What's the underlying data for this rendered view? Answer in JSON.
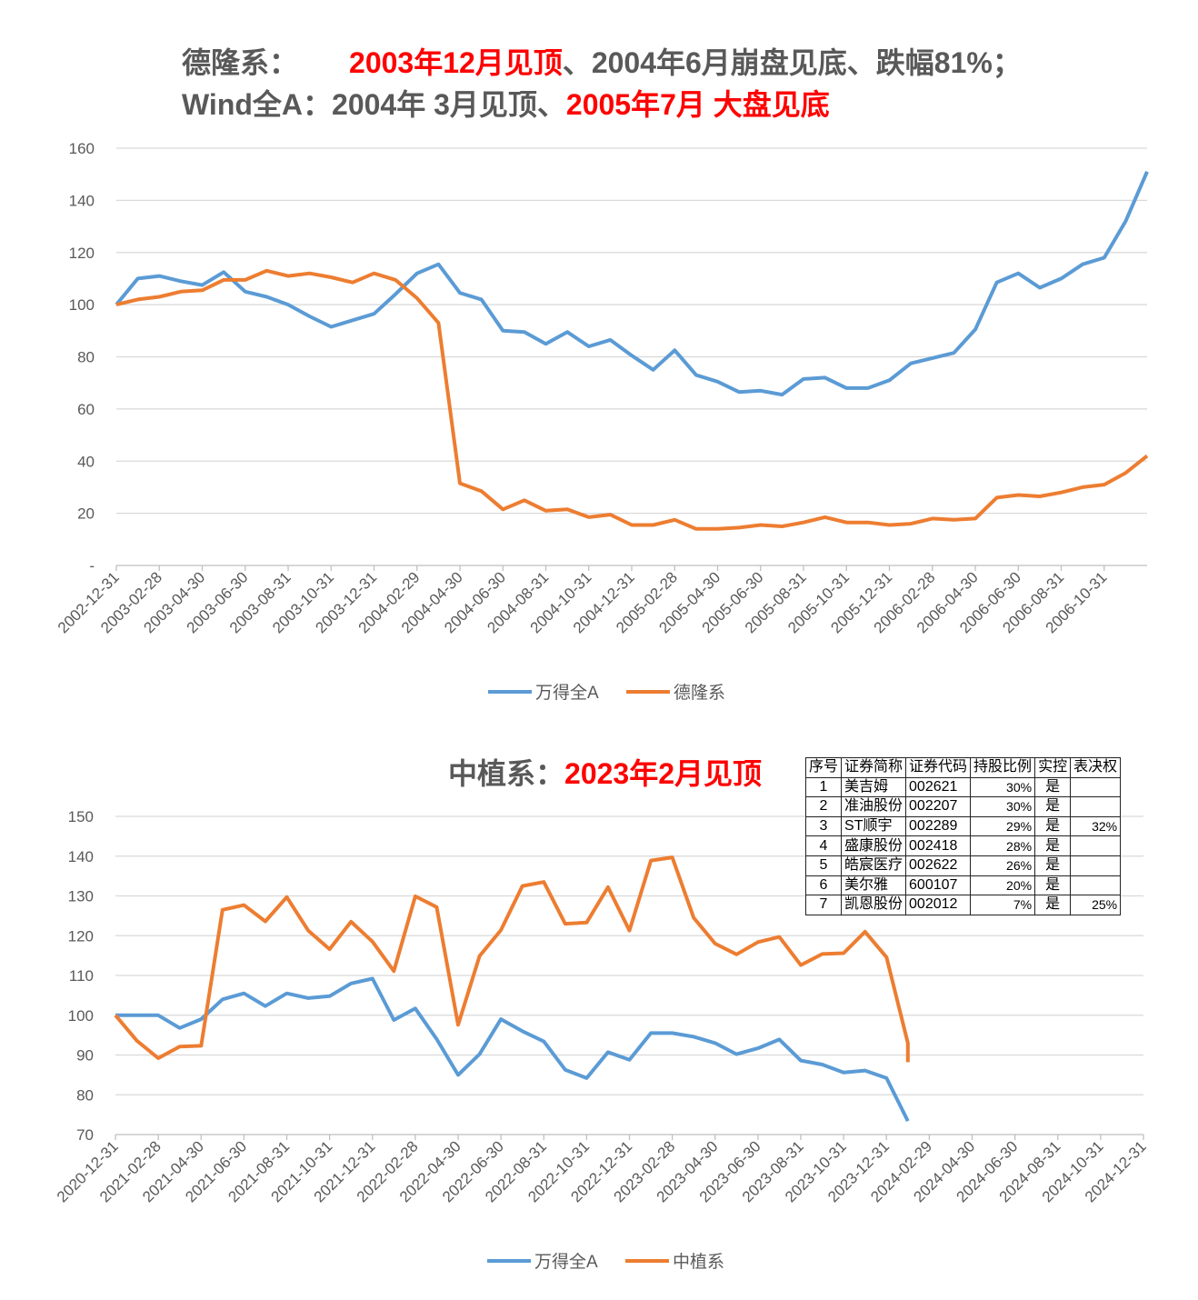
{
  "title1": {
    "line1_prefix": "德隆系：",
    "line1_red": "2003年12月见顶",
    "line1_rest": "、2004年6月崩盘见底、跌幅81%；",
    "line2_prefix": "Wind全A：2004年  3月见顶、",
    "line2_red": "2005年7月 大盘见底"
  },
  "title2": {
    "prefix": "中植系：",
    "red": "2023年2月见顶"
  },
  "colors": {
    "blue": "#5b9bd5",
    "orange": "#ed7d31",
    "red": "#ff0000",
    "grid": "#d9d9d9"
  },
  "chart_data": [
    {
      "type": "line",
      "title": "德隆系：2003年12月见顶、2004年6月崩盘见底、跌幅81%；Wind全A：2004年 3月见顶、2005年7月 大盘见底",
      "start": "2002-12-31",
      "frequency": "monthly",
      "x_tick_labels": [
        "2002-12-31",
        "2003-02-28",
        "2003-04-30",
        "2003-06-30",
        "2003-08-31",
        "2003-10-31",
        "2003-12-31",
        "2004-02-29",
        "2004-04-30",
        "2004-06-30",
        "2004-08-31",
        "2004-10-31",
        "2004-12-31",
        "2005-02-28",
        "2005-04-30",
        "2005-06-30",
        "2005-08-31",
        "2005-10-31",
        "2005-12-31",
        "2006-02-28",
        "2006-04-30",
        "2006-06-30",
        "2006-08-31",
        "2006-10-31"
      ],
      "y_tick_labels": [
        "-",
        "20",
        "40",
        "60",
        "80",
        "100",
        "120",
        "140",
        "160"
      ],
      "ylim": [
        0,
        160
      ],
      "grid": true,
      "legend_position": "bottom",
      "series": [
        {
          "name": "万得全A",
          "color_key": "blue",
          "values": [
            100,
            110,
            111,
            109,
            107.5,
            112.5,
            105,
            103,
            100,
            95.5,
            91.5,
            94,
            96.5,
            104,
            112,
            115.5,
            104.5,
            102,
            90,
            89.5,
            85,
            89.5,
            84,
            86.5,
            80.5,
            75,
            82.5,
            73,
            70.5,
            66.5,
            67,
            65.5,
            71.5,
            72,
            68,
            68,
            71,
            77.5,
            79.5,
            81.5,
            90.5,
            108.5,
            112,
            106.5,
            110,
            115.5,
            118,
            132,
            151
          ]
        },
        {
          "name": "德隆系",
          "color_key": "orange",
          "values": [
            100,
            102,
            103,
            105,
            105.5,
            109.5,
            109.5,
            113,
            111,
            112,
            110.5,
            108.5,
            112,
            109.5,
            102.5,
            93,
            31.5,
            28.5,
            21.5,
            25,
            21,
            21.5,
            18.5,
            19.5,
            15.5,
            15.5,
            17.5,
            14,
            14,
            14.5,
            15.5,
            15,
            16.5,
            18.5,
            16.5,
            16.5,
            15.5,
            16,
            18,
            17.5,
            18,
            26,
            27,
            26.5,
            28,
            30,
            31,
            35.5,
            42
          ]
        }
      ]
    },
    {
      "type": "line",
      "title": "中植系：2023年2月见顶",
      "start": "2020-12-31",
      "frequency": "monthly",
      "x_months_span": 48,
      "x_tick_labels": [
        "2020-12-31",
        "2021-02-28",
        "2021-04-30",
        "2021-06-30",
        "2021-08-31",
        "2021-10-31",
        "2021-12-31",
        "2022-02-28",
        "2022-04-30",
        "2022-06-30",
        "2022-08-31",
        "2022-10-31",
        "2022-12-31",
        "2023-02-28",
        "2023-04-30",
        "2023-06-30",
        "2023-08-31",
        "2023-10-31",
        "2023-12-31",
        "2024-02-29",
        "2024-04-30",
        "2024-06-30",
        "2024-08-31",
        "2024-10-31",
        "2024-12-31"
      ],
      "y_tick_labels": [
        "70",
        "80",
        "90",
        "100",
        "110",
        "120",
        "130",
        "140",
        "150"
      ],
      "ylim": [
        70,
        150
      ],
      "grid": true,
      "legend_position": "bottom",
      "series": [
        {
          "name": "万得全A",
          "color_key": "blue",
          "values": [
            100,
            100,
            100,
            96.8,
            99,
            104,
            105.5,
            102.3,
            105.5,
            104.3,
            104.8,
            108,
            109.2,
            98.8,
            101.7,
            94,
            85,
            90.2,
            99,
            96,
            93.4,
            86.3,
            84.2,
            90.7,
            88.8,
            95.5,
            95.5,
            94.6,
            93,
            90.2,
            91.7,
            93.9,
            88.6,
            87.6,
            85.6,
            86.1,
            84.2,
            73.4
          ]
        },
        {
          "name": "中植系",
          "color_key": "orange",
          "values": [
            100,
            93.6,
            89.2,
            92.1,
            92.3,
            126.5,
            127.7,
            123.6,
            129.7,
            121.3,
            116.6,
            123.5,
            118.5,
            111.1,
            129.9,
            127.2,
            97.6,
            114.9,
            121.4,
            132.5,
            133.5,
            123,
            123.3,
            132.2,
            121.3,
            138.9,
            139.7,
            124.5,
            118,
            115.3,
            118.4,
            119.7,
            112.6,
            115.4,
            115.6,
            121,
            114.6,
            93,
            88.2
          ],
          "last_point_same_month": true
        }
      ]
    }
  ],
  "table": {
    "headers": [
      "序号",
      "证券简称",
      "证券代码",
      "持股比例",
      "实控",
      "表决权"
    ],
    "rows": [
      [
        "1",
        "美吉姆",
        "002621",
        "30%",
        "是",
        ""
      ],
      [
        "2",
        "准油股份",
        "002207",
        "30%",
        "是",
        ""
      ],
      [
        "3",
        "ST顺宇",
        "002289",
        "29%",
        "是",
        "32%"
      ],
      [
        "4",
        "盛康股份",
        "002418",
        "28%",
        "是",
        ""
      ],
      [
        "5",
        "皓宸医疗",
        "002622",
        "26%",
        "是",
        ""
      ],
      [
        "6",
        "美尔雅",
        "600107",
        "20%",
        "是",
        ""
      ],
      [
        "7",
        "凯恩股份",
        "002012",
        "7%",
        "是",
        "25%"
      ]
    ]
  }
}
